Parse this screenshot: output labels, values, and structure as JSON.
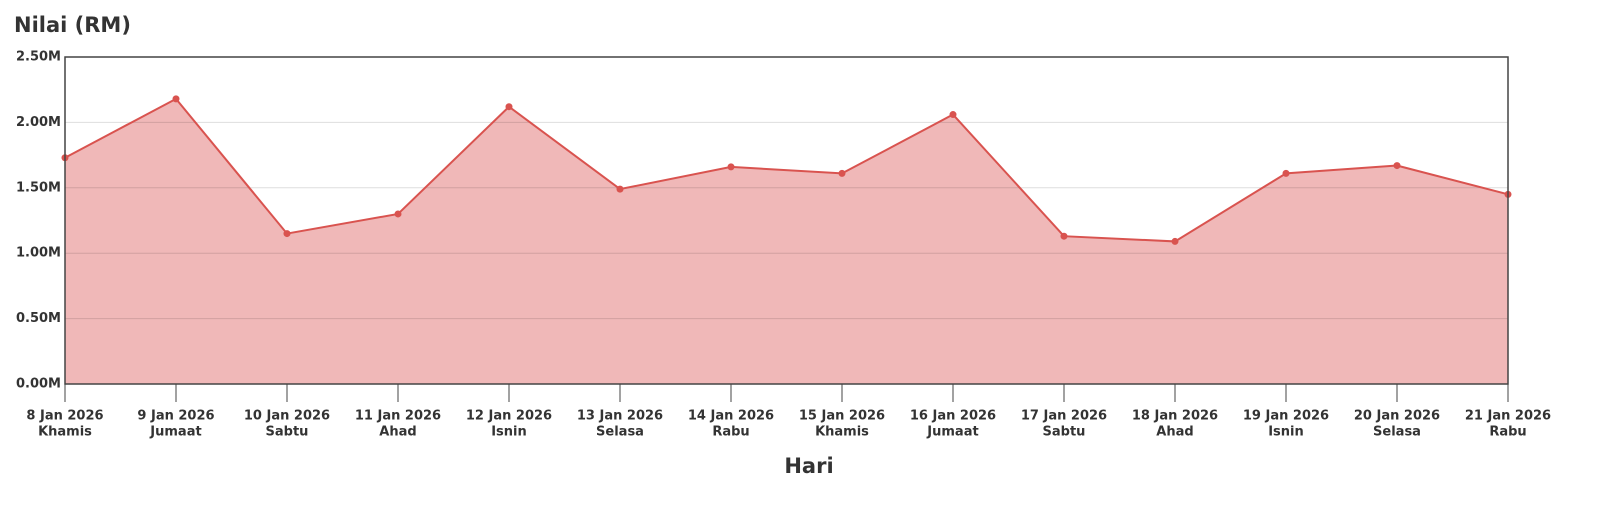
{
  "chart_data": {
    "type": "area",
    "title": "Nilai (RM)",
    "x_label": "Hari",
    "categories": [
      "8 Jan 2026",
      "9 Jan 2026",
      "10 Jan 2026",
      "11 Jan 2026",
      "12 Jan 2026",
      "13 Jan 2026",
      "14 Jan 2026",
      "15 Jan 2026",
      "16 Jan 2026",
      "17 Jan 2026",
      "18 Jan 2026",
      "19 Jan 2026",
      "20 Jan 2026",
      "21 Jan 2026"
    ],
    "day_names": [
      "Khamis",
      "Jumaat",
      "Sabtu",
      "Ahad",
      "Isnin",
      "Selasa",
      "Rabu",
      "Khamis",
      "Jumaat",
      "Sabtu",
      "Ahad",
      "Isnin",
      "Selasa",
      "Rabu"
    ],
    "values": [
      1730000,
      2180000,
      1150000,
      1300000,
      2120000,
      1490000,
      1660000,
      1610000,
      2060000,
      1130000,
      1090000,
      1610000,
      1670000,
      1450000
    ],
    "color": "#d9534f",
    "fill": "#f0b8b8",
    "ylim": [
      0,
      2500000
    ],
    "yticks": [
      {
        "value": 0,
        "label": "0.00M"
      },
      {
        "value": 500000,
        "label": "0.50M"
      },
      {
        "value": 1000000,
        "label": "1.00M"
      },
      {
        "value": 1500000,
        "label": "1.50M"
      },
      {
        "value": 2000000,
        "label": "2.00M"
      },
      {
        "value": 2500000,
        "label": "2.50M"
      }
    ],
    "grid": true
  }
}
